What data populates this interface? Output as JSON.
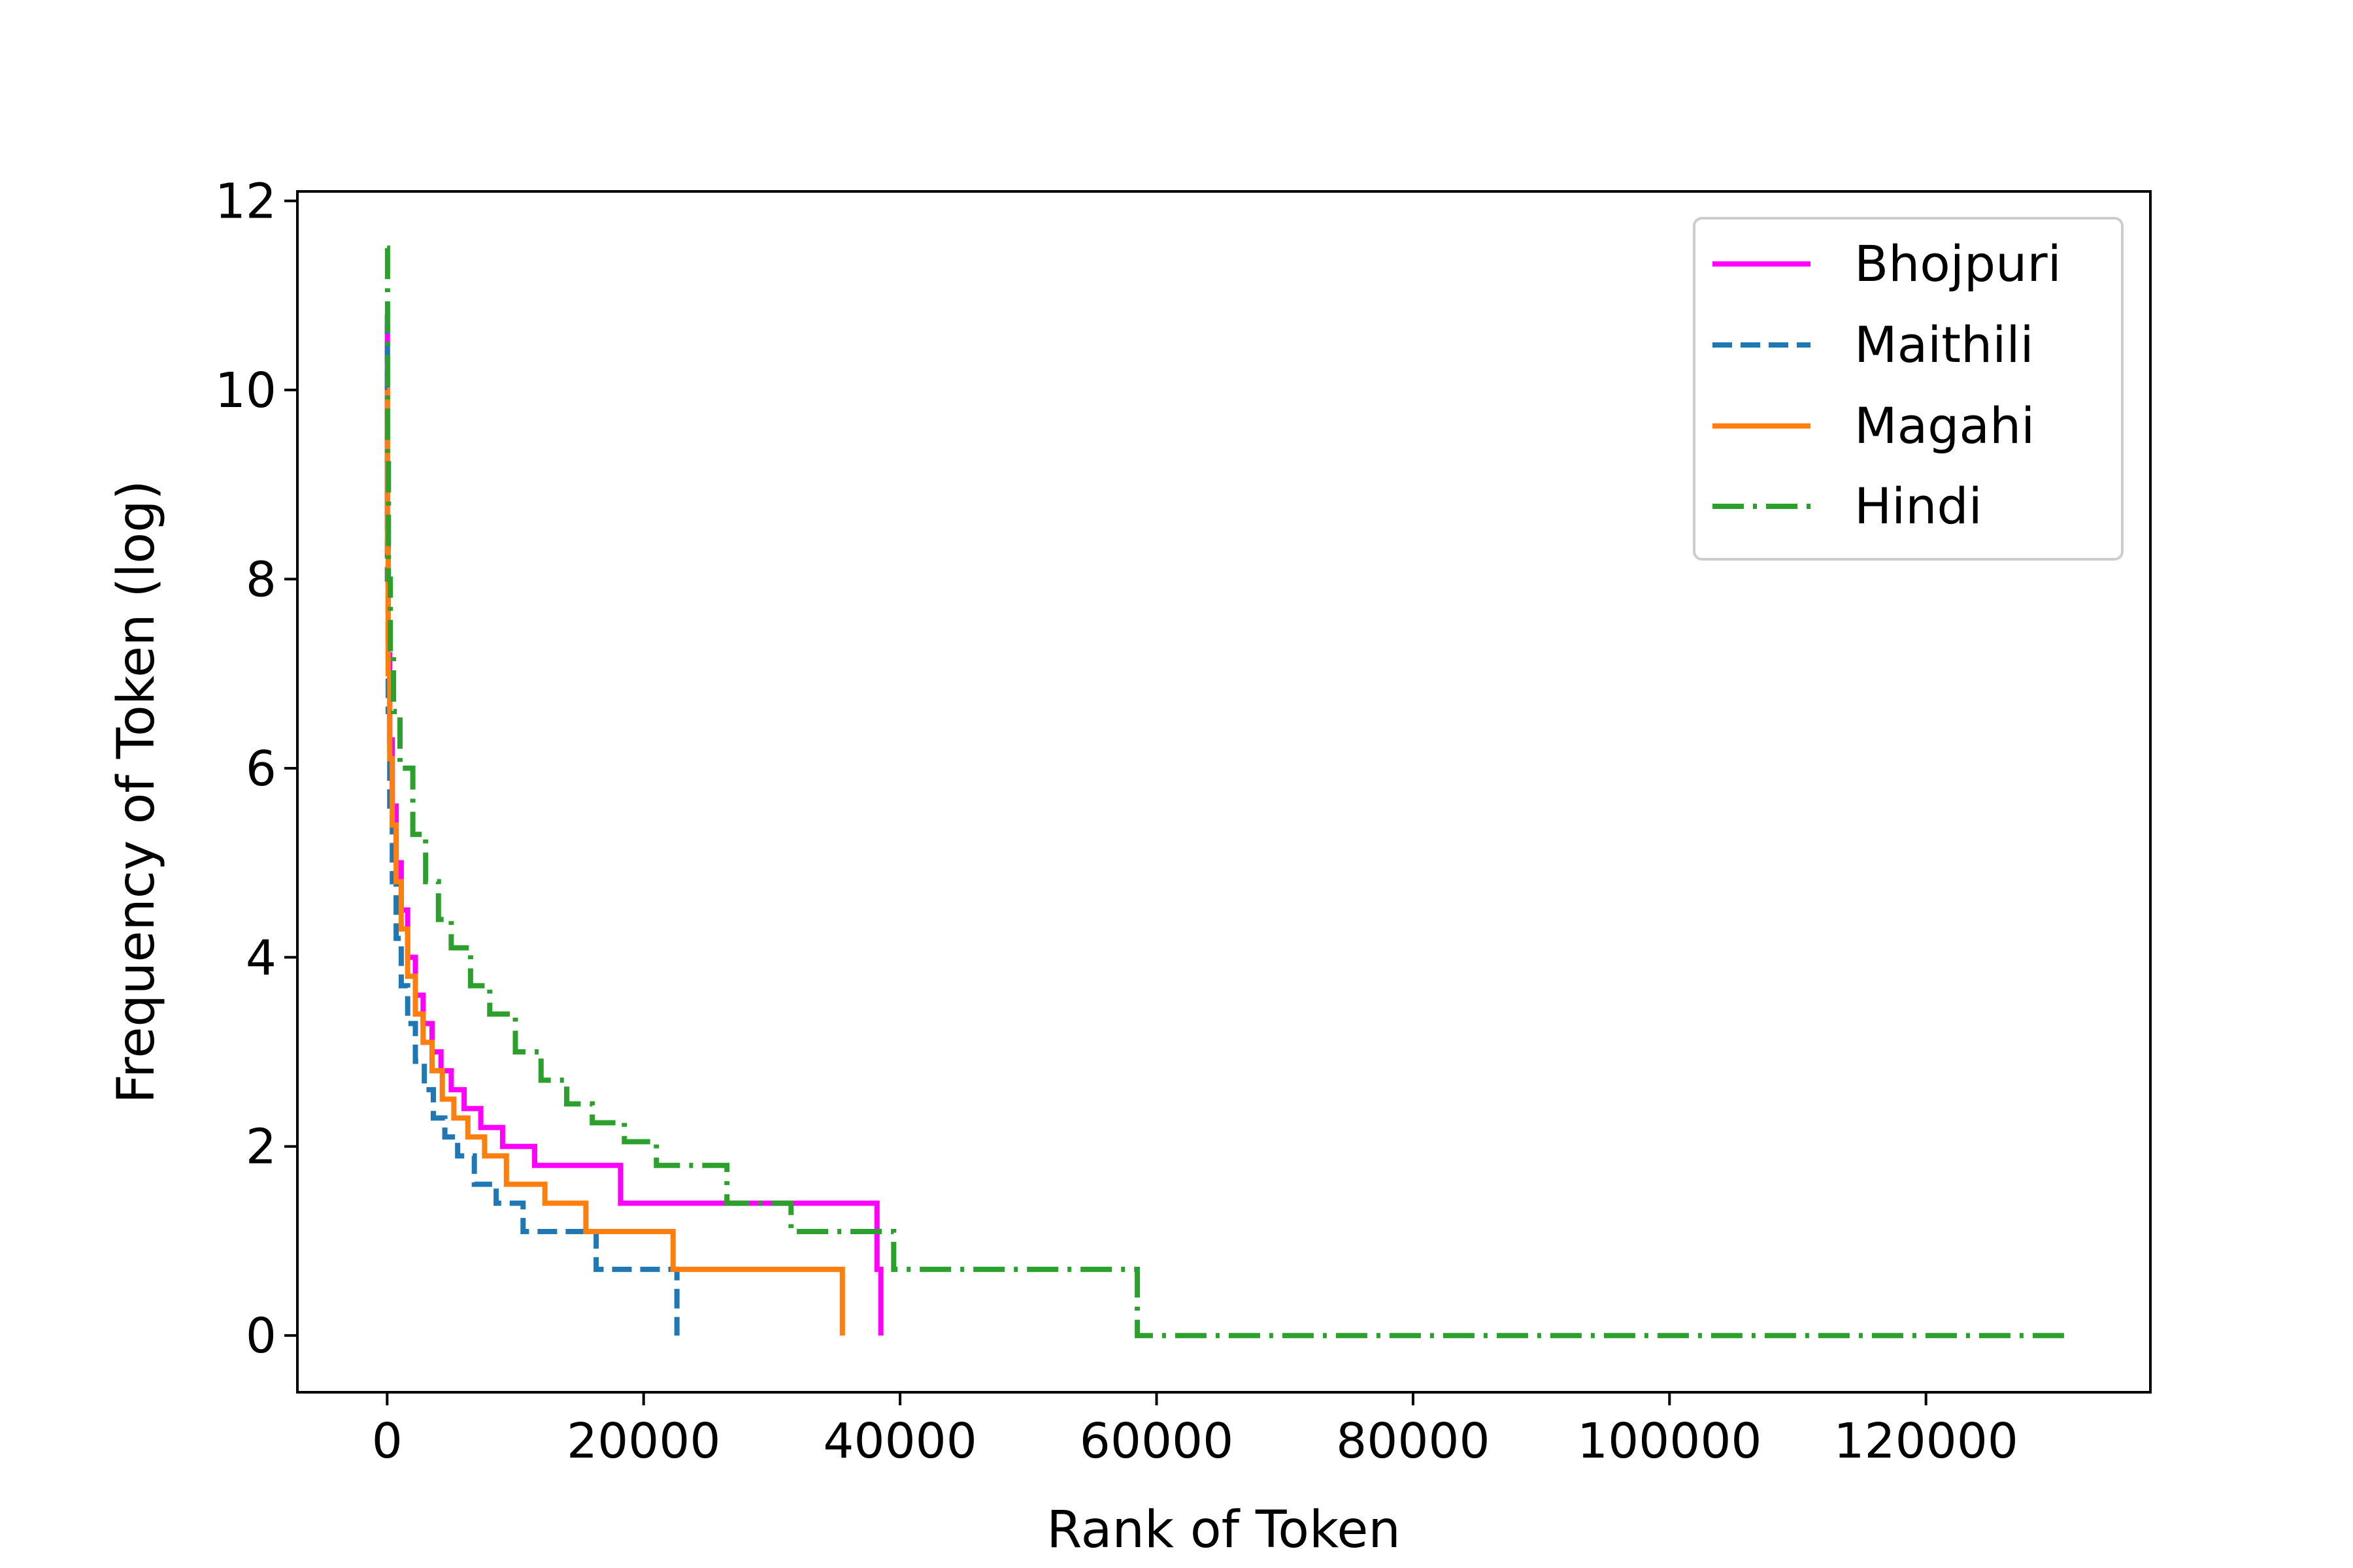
{
  "chart_data": {
    "type": "line",
    "title": "",
    "xlabel": "Rank of Token",
    "ylabel": "Frequency of Token (log)",
    "xlim": [
      -7000,
      137500
    ],
    "ylim": [
      -0.6,
      12.1
    ],
    "xticks": [
      0,
      20000,
      40000,
      60000,
      80000,
      100000,
      120000
    ],
    "yticks": [
      0,
      2,
      4,
      6,
      8,
      10,
      12
    ],
    "grid": false,
    "legend_position": "top-right",
    "series": [
      {
        "name": "Bhojpuri",
        "color": "#ff00ff",
        "dash": "solid",
        "points": [
          [
            0,
            10.7
          ],
          [
            20,
            8.6
          ],
          [
            80,
            7.2
          ],
          [
            200,
            6.3
          ],
          [
            400,
            5.6
          ],
          [
            700,
            5.0
          ],
          [
            1100,
            4.5
          ],
          [
            1600,
            4.0
          ],
          [
            2200,
            3.6
          ],
          [
            2800,
            3.3
          ],
          [
            3500,
            3.0
          ],
          [
            4200,
            2.8
          ],
          [
            5000,
            2.6
          ],
          [
            6000,
            2.4
          ],
          [
            7300,
            2.2
          ],
          [
            9000,
            2.0
          ],
          [
            11500,
            1.8
          ],
          [
            18200,
            1.4
          ],
          [
            38200,
            0.7
          ],
          [
            38500,
            0
          ]
        ]
      },
      {
        "name": "Maithili",
        "color": "#1f77b4",
        "dash": "dashed",
        "points": [
          [
            0,
            10.8
          ],
          [
            20,
            8.0
          ],
          [
            80,
            6.6
          ],
          [
            200,
            5.6
          ],
          [
            400,
            4.8
          ],
          [
            700,
            4.2
          ],
          [
            1100,
            3.7
          ],
          [
            1600,
            3.3
          ],
          [
            2200,
            2.9
          ],
          [
            2900,
            2.6
          ],
          [
            3600,
            2.3
          ],
          [
            4500,
            2.1
          ],
          [
            5500,
            1.9
          ],
          [
            6800,
            1.6
          ],
          [
            8500,
            1.4
          ],
          [
            10600,
            1.1
          ],
          [
            16300,
            0.7
          ],
          [
            22600,
            0
          ]
        ]
      },
      {
        "name": "Magahi",
        "color": "#ff7f0e",
        "dash": "solid",
        "points": [
          [
            0,
            10.0
          ],
          [
            20,
            8.3
          ],
          [
            80,
            7.0
          ],
          [
            200,
            6.1
          ],
          [
            400,
            5.4
          ],
          [
            700,
            4.8
          ],
          [
            1100,
            4.3
          ],
          [
            1600,
            3.8
          ],
          [
            2200,
            3.4
          ],
          [
            2800,
            3.1
          ],
          [
            3500,
            2.8
          ],
          [
            4300,
            2.5
          ],
          [
            5200,
            2.3
          ],
          [
            6300,
            2.1
          ],
          [
            7600,
            1.9
          ],
          [
            9300,
            1.6
          ],
          [
            12300,
            1.4
          ],
          [
            15500,
            1.1
          ],
          [
            22300,
            0.7
          ],
          [
            35500,
            0
          ]
        ]
      },
      {
        "name": "Hindi",
        "color": "#2ca02c",
        "dash": "dashdot",
        "points": [
          [
            0,
            11.5
          ],
          [
            30,
            9.3
          ],
          [
            100,
            8.0
          ],
          [
            250,
            7.2
          ],
          [
            500,
            6.6
          ],
          [
            1000,
            6.0
          ],
          [
            2000,
            5.3
          ],
          [
            3000,
            4.8
          ],
          [
            4000,
            4.4
          ],
          [
            5000,
            4.1
          ],
          [
            6500,
            3.7
          ],
          [
            8000,
            3.4
          ],
          [
            10000,
            3.0
          ],
          [
            12000,
            2.7
          ],
          [
            14000,
            2.45
          ],
          [
            16000,
            2.25
          ],
          [
            18500,
            2.05
          ],
          [
            21000,
            1.8
          ],
          [
            26500,
            1.4
          ],
          [
            31500,
            1.1
          ],
          [
            39500,
            0.7
          ],
          [
            58500,
            0
          ],
          [
            131000,
            0
          ]
        ]
      }
    ]
  }
}
